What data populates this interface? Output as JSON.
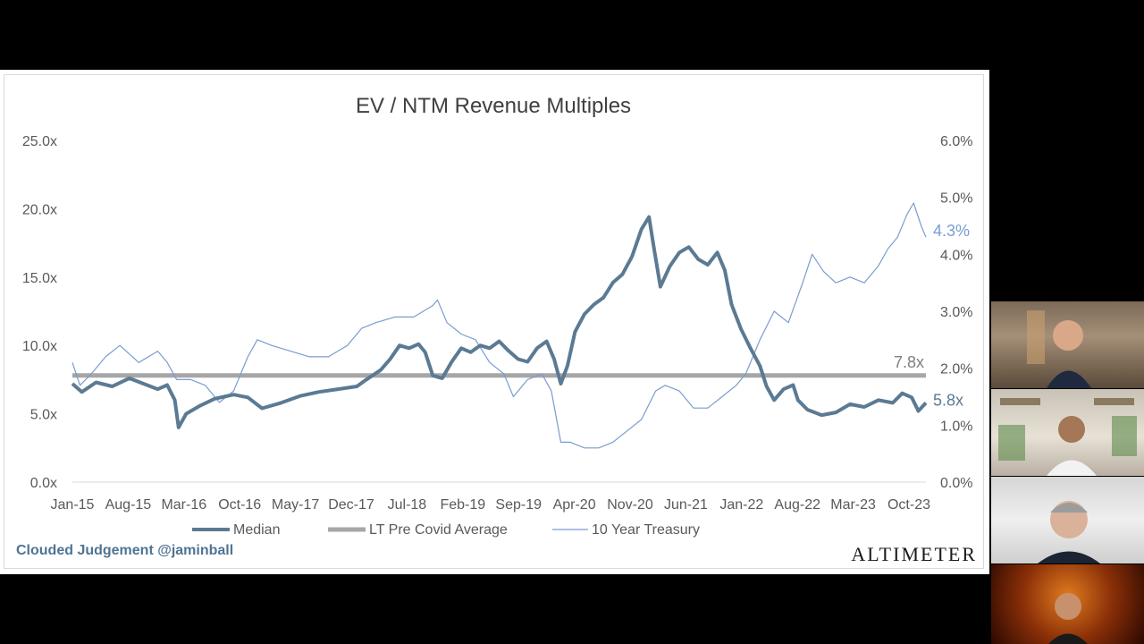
{
  "chart_data": {
    "type": "line",
    "title": "EV / NTM Revenue Multiples",
    "x_tick_labels": [
      "Jan-15",
      "Aug-15",
      "Mar-16",
      "Oct-16",
      "May-17",
      "Dec-17",
      "Jul-18",
      "Feb-19",
      "Sep-19",
      "Apr-20",
      "Nov-20",
      "Jun-21",
      "Jan-22",
      "Aug-22",
      "Mar-23",
      "Oct-23"
    ],
    "x_start": "Jan-15",
    "x_end": "Jan-24",
    "y_left": {
      "ticks": [
        "0.0x",
        "5.0x",
        "10.0x",
        "15.0x",
        "20.0x",
        "25.0x"
      ],
      "range": [
        0,
        25
      ]
    },
    "y_right": {
      "ticks": [
        "0.0%",
        "1.0%",
        "2.0%",
        "3.0%",
        "4.0%",
        "5.0%",
        "6.0%"
      ],
      "range": [
        0,
        6
      ]
    },
    "series": [
      {
        "name": "Median",
        "axis": "left",
        "color": "#5b7a93",
        "points": [
          [
            2015.0,
            7.2
          ],
          [
            2015.1,
            6.6
          ],
          [
            2015.25,
            7.3
          ],
          [
            2015.42,
            7.0
          ],
          [
            2015.6,
            7.6
          ],
          [
            2015.75,
            7.2
          ],
          [
            2015.9,
            6.8
          ],
          [
            2016.0,
            7.1
          ],
          [
            2016.08,
            6.0
          ],
          [
            2016.12,
            4.0
          ],
          [
            2016.2,
            5.0
          ],
          [
            2016.35,
            5.6
          ],
          [
            2016.5,
            6.1
          ],
          [
            2016.7,
            6.4
          ],
          [
            2016.85,
            6.2
          ],
          [
            2017.0,
            5.4
          ],
          [
            2017.2,
            5.8
          ],
          [
            2017.4,
            6.3
          ],
          [
            2017.6,
            6.6
          ],
          [
            2017.8,
            6.8
          ],
          [
            2018.0,
            7.0
          ],
          [
            2018.1,
            7.5
          ],
          [
            2018.25,
            8.2
          ],
          [
            2018.35,
            9.0
          ],
          [
            2018.45,
            10.0
          ],
          [
            2018.55,
            9.8
          ],
          [
            2018.65,
            10.1
          ],
          [
            2018.72,
            9.5
          ],
          [
            2018.8,
            7.8
          ],
          [
            2018.9,
            7.6
          ],
          [
            2019.0,
            8.8
          ],
          [
            2019.1,
            9.8
          ],
          [
            2019.2,
            9.5
          ],
          [
            2019.3,
            10.0
          ],
          [
            2019.4,
            9.8
          ],
          [
            2019.5,
            10.3
          ],
          [
            2019.6,
            9.6
          ],
          [
            2019.7,
            9.0
          ],
          [
            2019.8,
            8.8
          ],
          [
            2019.9,
            9.8
          ],
          [
            2020.0,
            10.3
          ],
          [
            2020.08,
            9.0
          ],
          [
            2020.15,
            7.2
          ],
          [
            2020.22,
            8.5
          ],
          [
            2020.3,
            11.0
          ],
          [
            2020.4,
            12.3
          ],
          [
            2020.5,
            13.0
          ],
          [
            2020.6,
            13.5
          ],
          [
            2020.7,
            14.6
          ],
          [
            2020.8,
            15.2
          ],
          [
            2020.9,
            16.5
          ],
          [
            2021.0,
            18.5
          ],
          [
            2021.08,
            19.4
          ],
          [
            2021.13,
            17.2
          ],
          [
            2021.2,
            14.3
          ],
          [
            2021.3,
            15.8
          ],
          [
            2021.4,
            16.8
          ],
          [
            2021.5,
            17.2
          ],
          [
            2021.6,
            16.3
          ],
          [
            2021.7,
            15.9
          ],
          [
            2021.8,
            16.8
          ],
          [
            2021.88,
            15.5
          ],
          [
            2021.95,
            13.0
          ],
          [
            2022.05,
            11.2
          ],
          [
            2022.15,
            9.8
          ],
          [
            2022.25,
            8.5
          ],
          [
            2022.32,
            7.0
          ],
          [
            2022.4,
            6.0
          ],
          [
            2022.5,
            6.8
          ],
          [
            2022.6,
            7.1
          ],
          [
            2022.65,
            6.0
          ],
          [
            2022.75,
            5.3
          ],
          [
            2022.9,
            4.9
          ],
          [
            2023.05,
            5.1
          ],
          [
            2023.2,
            5.7
          ],
          [
            2023.35,
            5.5
          ],
          [
            2023.5,
            6.0
          ],
          [
            2023.65,
            5.8
          ],
          [
            2023.75,
            6.5
          ],
          [
            2023.85,
            6.2
          ],
          [
            2023.92,
            5.2
          ],
          [
            2024.0,
            5.8
          ]
        ]
      },
      {
        "name": "LT Pre Covid Average",
        "axis": "left",
        "color": "#a6a6a6",
        "points": [
          [
            2015.0,
            7.8
          ],
          [
            2024.0,
            7.8
          ]
        ]
      },
      {
        "name": "10 Year Treasury",
        "axis": "right",
        "color": "#7a9cd0",
        "points": [
          [
            2015.0,
            2.1
          ],
          [
            2015.08,
            1.7
          ],
          [
            2015.2,
            1.9
          ],
          [
            2015.35,
            2.2
          ],
          [
            2015.5,
            2.4
          ],
          [
            2015.7,
            2.1
          ],
          [
            2015.9,
            2.3
          ],
          [
            2016.0,
            2.1
          ],
          [
            2016.1,
            1.8
          ],
          [
            2016.25,
            1.8
          ],
          [
            2016.4,
            1.7
          ],
          [
            2016.55,
            1.4
          ],
          [
            2016.7,
            1.6
          ],
          [
            2016.85,
            2.2
          ],
          [
            2016.95,
            2.5
          ],
          [
            2017.1,
            2.4
          ],
          [
            2017.3,
            2.3
          ],
          [
            2017.5,
            2.2
          ],
          [
            2017.7,
            2.2
          ],
          [
            2017.9,
            2.4
          ],
          [
            2018.05,
            2.7
          ],
          [
            2018.2,
            2.8
          ],
          [
            2018.4,
            2.9
          ],
          [
            2018.6,
            2.9
          ],
          [
            2018.8,
            3.1
          ],
          [
            2018.85,
            3.2
          ],
          [
            2018.95,
            2.8
          ],
          [
            2019.1,
            2.6
          ],
          [
            2019.25,
            2.5
          ],
          [
            2019.4,
            2.1
          ],
          [
            2019.55,
            1.9
          ],
          [
            2019.65,
            1.5
          ],
          [
            2019.8,
            1.8
          ],
          [
            2019.95,
            1.9
          ],
          [
            2020.05,
            1.6
          ],
          [
            2020.15,
            0.7
          ],
          [
            2020.25,
            0.7
          ],
          [
            2020.4,
            0.6
          ],
          [
            2020.55,
            0.6
          ],
          [
            2020.7,
            0.7
          ],
          [
            2020.85,
            0.9
          ],
          [
            2021.0,
            1.1
          ],
          [
            2021.15,
            1.6
          ],
          [
            2021.25,
            1.7
          ],
          [
            2021.4,
            1.6
          ],
          [
            2021.55,
            1.3
          ],
          [
            2021.7,
            1.3
          ],
          [
            2021.85,
            1.5
          ],
          [
            2022.0,
            1.7
          ],
          [
            2022.1,
            1.9
          ],
          [
            2022.25,
            2.5
          ],
          [
            2022.4,
            3.0
          ],
          [
            2022.55,
            2.8
          ],
          [
            2022.7,
            3.5
          ],
          [
            2022.8,
            4.0
          ],
          [
            2022.92,
            3.7
          ],
          [
            2023.05,
            3.5
          ],
          [
            2023.2,
            3.6
          ],
          [
            2023.35,
            3.5
          ],
          [
            2023.5,
            3.8
          ],
          [
            2023.6,
            4.1
          ],
          [
            2023.7,
            4.3
          ],
          [
            2023.8,
            4.7
          ],
          [
            2023.87,
            4.9
          ],
          [
            2023.95,
            4.5
          ],
          [
            2024.0,
            4.3
          ]
        ]
      }
    ],
    "end_labels": {
      "median": "5.8x",
      "average": "7.8x",
      "treasury": "4.3%"
    },
    "legend_position": "bottom",
    "grid": false
  },
  "branding": {
    "left": "Clouded Judgement @jaminball",
    "right": "ALTIMETER"
  },
  "participants": [
    "participant-1",
    "participant-2",
    "participant-3",
    "participant-4"
  ]
}
